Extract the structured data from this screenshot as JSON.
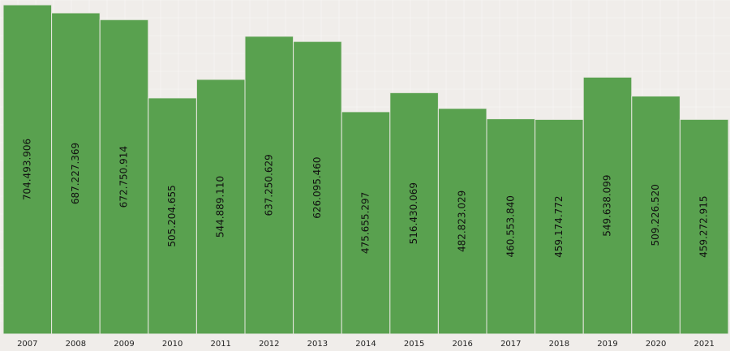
{
  "chart_data": {
    "type": "bar",
    "title": "",
    "xlabel": "",
    "ylabel": "",
    "categories": [
      "2007",
      "2008",
      "2009",
      "2010",
      "2011",
      "2012",
      "2013",
      "2014",
      "2015",
      "2016",
      "2017",
      "2018",
      "2019",
      "2020",
      "2021"
    ],
    "values": [
      704493906,
      687227369,
      672750914,
      505204655,
      544889110,
      637250629,
      626095460,
      475655297,
      516430069,
      482823029,
      460553840,
      459174772,
      549638099,
      509226520,
      459272915
    ],
    "value_labels": [
      "704.493.906",
      "687.227.369",
      "672.750.914",
      "505.204.655",
      "544.889.110",
      "637.250.629",
      "626.095.460",
      "475.655.297",
      "516.430.069",
      "482.823.029",
      "460.553.840",
      "459.174.772",
      "549.638.099",
      "509.226.520",
      "459.272.915"
    ],
    "ylim": [
      0,
      704493906
    ],
    "grid": true,
    "legend": "none",
    "colors": {
      "bar": "#59a14f",
      "bar_border": "#e8e8e0",
      "background": "#f0edea",
      "grid": "#ffffff",
      "label": "#111111"
    }
  }
}
